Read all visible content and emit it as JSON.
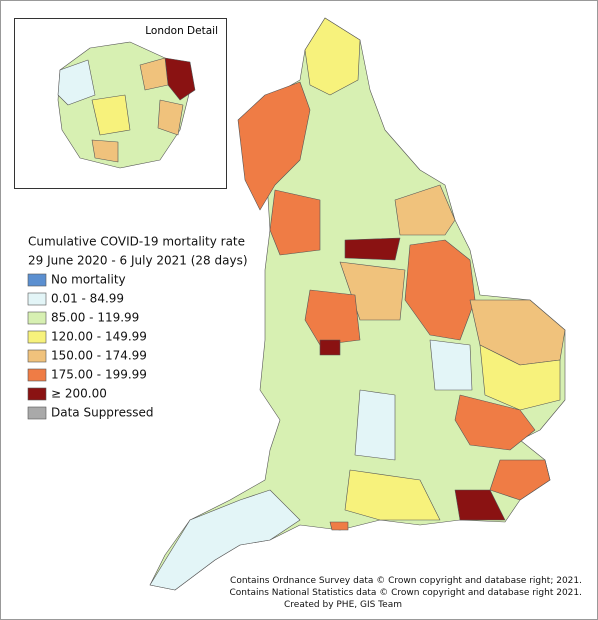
{
  "inset": {
    "title": "London Detail"
  },
  "legend": {
    "title": [
      "Cumulative COVID-19 mortality rate",
      "29 June 2020 - 6 July 2021 (28 days)"
    ],
    "items": [
      {
        "label": "No mortality",
        "color": "#5b8fd0"
      },
      {
        "label": "0.01 - 84.99",
        "color": "#e3f5f7"
      },
      {
        "label": "85.00 - 119.99",
        "color": "#d7f0b2"
      },
      {
        "label": "120.00 - 149.99",
        "color": "#f7f27c"
      },
      {
        "label": "150.00 - 174.99",
        "color": "#f0c27c"
      },
      {
        "label": "175.00 - 199.99",
        "color": "#ef7c45"
      },
      {
        "label": "≥ 200.00",
        "color": "#8a1212"
      },
      {
        "label": "Data Suppressed",
        "color": "#a9a9a9"
      }
    ]
  },
  "credits": [
    "Contains Ordnance Survey data © Crown copyright and database right; 2021.",
    "Contains National Statistics data © Crown copyright and database right 2021.",
    "Created by PHE, GIS Team"
  ]
}
